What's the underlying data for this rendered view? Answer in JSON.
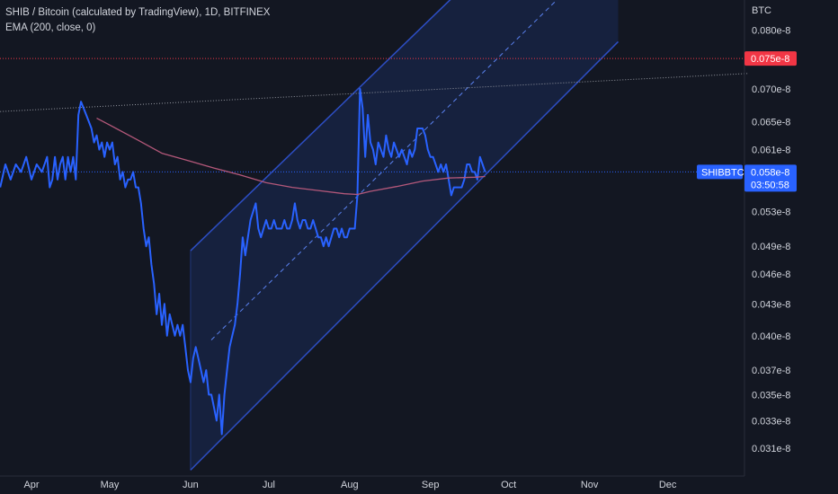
{
  "legend": {
    "title": "SHIB / Bitcoin (calculated by TradingView), 1D, BITFINEX",
    "indicator": "EMA (200, close, 0)"
  },
  "colors": {
    "background": "#131722",
    "price_line": "#2962ff",
    "ema_line": "#b4587a",
    "channel_line": "#2d4ec4",
    "channel_fill": "#1a2a56",
    "alert_line": "#f23645",
    "price_tag": "#2962ff",
    "alert_tag": "#f23645"
  },
  "chart_data": {
    "type": "line",
    "title": "SHIB / Bitcoin (calculated by TradingView), 1D, BITFINEX",
    "xlabel": "",
    "ylabel": "BTC",
    "y_unit_label": "BTC",
    "ylim": [
      0.0295,
      0.0845
    ],
    "scale": "log",
    "grid": false,
    "x_ticks": [
      {
        "label": "Apr",
        "day": 0
      },
      {
        "label": "May",
        "day": 30
      },
      {
        "label": "Jun",
        "day": 61
      },
      {
        "label": "Jul",
        "day": 91
      },
      {
        "label": "Aug",
        "day": 122
      },
      {
        "label": "Sep",
        "day": 153
      },
      {
        "label": "Oct",
        "day": 183
      },
      {
        "label": "Nov",
        "day": 214
      },
      {
        "label": "Dec",
        "day": 244
      }
    ],
    "y_ticks": [
      {
        "label": "0.080e-8",
        "value": 0.08
      },
      {
        "label": "0.070e-8",
        "value": 0.07
      },
      {
        "label": "0.065e-8",
        "value": 0.065
      },
      {
        "label": "0.061e-8",
        "value": 0.061
      },
      {
        "label": "0.053e-8",
        "value": 0.053
      },
      {
        "label": "0.049e-8",
        "value": 0.049
      },
      {
        "label": "0.046e-8",
        "value": 0.046
      },
      {
        "label": "0.043e-8",
        "value": 0.043
      },
      {
        "label": "0.040e-8",
        "value": 0.04
      },
      {
        "label": "0.037e-8",
        "value": 0.037
      },
      {
        "label": "0.035e-8",
        "value": 0.035
      },
      {
        "label": "0.033e-8",
        "value": 0.033
      },
      {
        "label": "0.031e-8",
        "value": 0.031
      }
    ],
    "series": [
      {
        "name": "SHIBBTC",
        "color": "#2962ff",
        "points": [
          [
            -12,
            0.056
          ],
          [
            -10,
            0.059
          ],
          [
            -8,
            0.057
          ],
          [
            -6,
            0.059
          ],
          [
            -4,
            0.058
          ],
          [
            -2,
            0.06
          ],
          [
            0,
            0.057
          ],
          [
            2,
            0.059
          ],
          [
            4,
            0.058
          ],
          [
            6,
            0.06
          ],
          [
            7,
            0.056
          ],
          [
            8,
            0.057
          ],
          [
            9,
            0.06
          ],
          [
            10,
            0.057
          ],
          [
            11,
            0.059
          ],
          [
            12,
            0.06
          ],
          [
            13,
            0.057
          ],
          [
            14,
            0.06
          ],
          [
            15,
            0.058
          ],
          [
            16,
            0.06
          ],
          [
            17,
            0.057
          ],
          [
            18,
            0.066
          ],
          [
            19,
            0.068
          ],
          [
            20,
            0.067
          ],
          [
            21,
            0.066
          ],
          [
            22,
            0.065
          ],
          [
            23,
            0.064
          ],
          [
            24,
            0.062
          ],
          [
            25,
            0.063
          ],
          [
            26,
            0.061
          ],
          [
            27,
            0.062
          ],
          [
            28,
            0.06
          ],
          [
            29,
            0.062
          ],
          [
            30,
            0.061
          ],
          [
            31,
            0.062
          ],
          [
            32,
            0.059
          ],
          [
            33,
            0.06
          ],
          [
            34,
            0.057
          ],
          [
            35,
            0.058
          ],
          [
            36,
            0.056
          ],
          [
            37,
            0.057
          ],
          [
            38,
            0.057
          ],
          [
            39,
            0.058
          ],
          [
            40,
            0.056
          ],
          [
            41,
            0.056
          ],
          [
            42,
            0.054
          ],
          [
            43,
            0.051
          ],
          [
            44,
            0.049
          ],
          [
            45,
            0.05
          ],
          [
            46,
            0.047
          ],
          [
            47,
            0.045
          ],
          [
            48,
            0.042
          ],
          [
            49,
            0.044
          ],
          [
            50,
            0.041
          ],
          [
            51,
            0.043
          ],
          [
            52,
            0.04
          ],
          [
            53,
            0.042
          ],
          [
            54,
            0.041
          ],
          [
            55,
            0.04
          ],
          [
            56,
            0.041
          ],
          [
            57,
            0.04
          ],
          [
            58,
            0.041
          ],
          [
            59,
            0.039
          ],
          [
            60,
            0.037
          ],
          [
            61,
            0.036
          ],
          [
            62,
            0.038
          ],
          [
            63,
            0.039
          ],
          [
            64,
            0.038
          ],
          [
            65,
            0.037
          ],
          [
            66,
            0.036
          ],
          [
            67,
            0.037
          ],
          [
            68,
            0.035
          ],
          [
            69,
            0.035
          ],
          [
            70,
            0.034
          ],
          [
            71,
            0.033
          ],
          [
            72,
            0.035
          ],
          [
            73,
            0.032
          ],
          [
            74,
            0.035
          ],
          [
            75,
            0.037
          ],
          [
            76,
            0.039
          ],
          [
            77,
            0.04
          ],
          [
            78,
            0.041
          ],
          [
            79,
            0.043
          ],
          [
            80,
            0.046
          ],
          [
            81,
            0.05
          ],
          [
            82,
            0.048
          ],
          [
            83,
            0.05
          ],
          [
            84,
            0.052
          ],
          [
            85,
            0.053
          ],
          [
            86,
            0.054
          ],
          [
            87,
            0.051
          ],
          [
            88,
            0.05
          ],
          [
            89,
            0.051
          ],
          [
            90,
            0.052
          ],
          [
            91,
            0.051
          ],
          [
            92,
            0.051
          ],
          [
            93,
            0.052
          ],
          [
            94,
            0.051
          ],
          [
            95,
            0.051
          ],
          [
            96,
            0.051
          ],
          [
            97,
            0.052
          ],
          [
            98,
            0.051
          ],
          [
            99,
            0.051
          ],
          [
            100,
            0.052
          ],
          [
            101,
            0.054
          ],
          [
            102,
            0.052
          ],
          [
            103,
            0.051
          ],
          [
            104,
            0.052
          ],
          [
            105,
            0.052
          ],
          [
            106,
            0.051
          ],
          [
            107,
            0.051
          ],
          [
            108,
            0.052
          ],
          [
            109,
            0.051
          ],
          [
            110,
            0.05
          ],
          [
            111,
            0.05
          ],
          [
            112,
            0.049
          ],
          [
            113,
            0.05
          ],
          [
            114,
            0.049
          ],
          [
            115,
            0.05
          ],
          [
            116,
            0.051
          ],
          [
            117,
            0.051
          ],
          [
            118,
            0.05
          ],
          [
            119,
            0.051
          ],
          [
            120,
            0.05
          ],
          [
            121,
            0.05
          ],
          [
            122,
            0.051
          ],
          [
            123,
            0.051
          ],
          [
            124,
            0.051
          ],
          [
            125,
            0.055
          ],
          [
            126,
            0.07
          ],
          [
            127,
            0.067
          ],
          [
            128,
            0.06
          ],
          [
            129,
            0.066
          ],
          [
            130,
            0.062
          ],
          [
            131,
            0.061
          ],
          [
            132,
            0.059
          ],
          [
            133,
            0.062
          ],
          [
            134,
            0.061
          ],
          [
            135,
            0.06
          ],
          [
            136,
            0.063
          ],
          [
            137,
            0.061
          ],
          [
            138,
            0.06
          ],
          [
            139,
            0.062
          ],
          [
            140,
            0.061
          ],
          [
            141,
            0.06
          ],
          [
            142,
            0.061
          ],
          [
            143,
            0.06
          ],
          [
            144,
            0.059
          ],
          [
            145,
            0.061
          ],
          [
            146,
            0.06
          ],
          [
            147,
            0.061
          ],
          [
            148,
            0.064
          ],
          [
            149,
            0.064
          ],
          [
            150,
            0.064
          ],
          [
            151,
            0.063
          ],
          [
            152,
            0.061
          ],
          [
            153,
            0.06
          ],
          [
            154,
            0.06
          ],
          [
            155,
            0.059
          ],
          [
            156,
            0.058
          ],
          [
            157,
            0.059
          ],
          [
            158,
            0.058
          ],
          [
            159,
            0.059
          ],
          [
            160,
            0.057
          ],
          [
            161,
            0.055
          ],
          [
            162,
            0.056
          ],
          [
            163,
            0.056
          ],
          [
            164,
            0.056
          ],
          [
            165,
            0.056
          ],
          [
            166,
            0.057
          ],
          [
            167,
            0.059
          ],
          [
            168,
            0.059
          ],
          [
            169,
            0.058
          ],
          [
            170,
            0.058
          ],
          [
            171,
            0.057
          ],
          [
            172,
            0.06
          ],
          [
            173,
            0.059
          ],
          [
            174,
            0.058
          ]
        ]
      },
      {
        "name": "EMA (200, close, 0)",
        "color": "#b4587a",
        "points": [
          [
            25,
            0.0655
          ],
          [
            30,
            0.0645
          ],
          [
            40,
            0.0625
          ],
          [
            50,
            0.0605
          ],
          [
            60,
            0.0595
          ],
          [
            70,
            0.0585
          ],
          [
            80,
            0.0576
          ],
          [
            90,
            0.0566
          ],
          [
            100,
            0.056
          ],
          [
            110,
            0.0556
          ],
          [
            120,
            0.0552
          ],
          [
            125,
            0.0551
          ],
          [
            130,
            0.0555
          ],
          [
            140,
            0.0561
          ],
          [
            150,
            0.0568
          ],
          [
            160,
            0.0572
          ],
          [
            170,
            0.0573
          ],
          [
            174,
            0.0574
          ]
        ]
      }
    ],
    "channel": {
      "upper": [
        [
          61,
          0.0485
        ],
        [
          174,
          0.0925
        ]
      ],
      "lower": [
        [
          61,
          0.0295
        ],
        [
          174,
          0.0576
        ]
      ],
      "right_end_day": 225
    },
    "reference_lines": {
      "dotted_trend": [
        [
          -12,
          0.0665
        ],
        [
          275,
          0.0725
        ]
      ],
      "alert_level": 0.075,
      "current_price": 0.058
    },
    "price_tags": {
      "symbol": "SHIBBTC",
      "price": "0.058e-8",
      "countdown": "03:50:58",
      "alert": "0.075e-8"
    }
  }
}
